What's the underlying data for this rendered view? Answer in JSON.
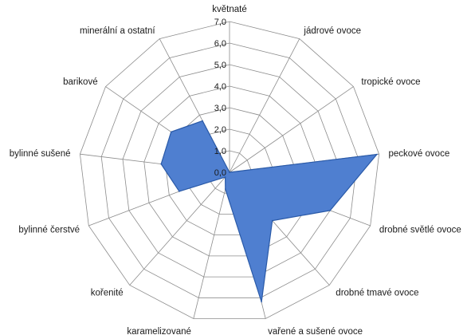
{
  "chart_data": {
    "type": "radar",
    "categories": [
      "květnaté",
      "jádrové ovoce",
      "tropické ovoce",
      "peckové ovoce",
      "drobné světlé ovoce",
      "drobné tmavé ovoce",
      "vařené a sušené ovoce",
      "karamelizované",
      "kořenité",
      "bylinné čerstvé",
      "bylinné sušené",
      "barikové",
      "minerální a ostatní"
    ],
    "series": [
      {
        "values": [
          0.0,
          0.0,
          0.0,
          6.9,
          5.0,
          3.0,
          6.2,
          0.8,
          0.3,
          2.5,
          3.2,
          3.3,
          2.7
        ]
      }
    ],
    "rlim": [
      0,
      7
    ],
    "r_ticks": [
      "0,0",
      "1,0",
      "2,0",
      "3,0",
      "4,0",
      "5,0",
      "6,0",
      "7,0"
    ],
    "grid": true,
    "legend": "none",
    "colors": {
      "fill": "#4f7fd0",
      "stroke": "#2a5aa8",
      "grid": "#8c8c8c"
    }
  }
}
